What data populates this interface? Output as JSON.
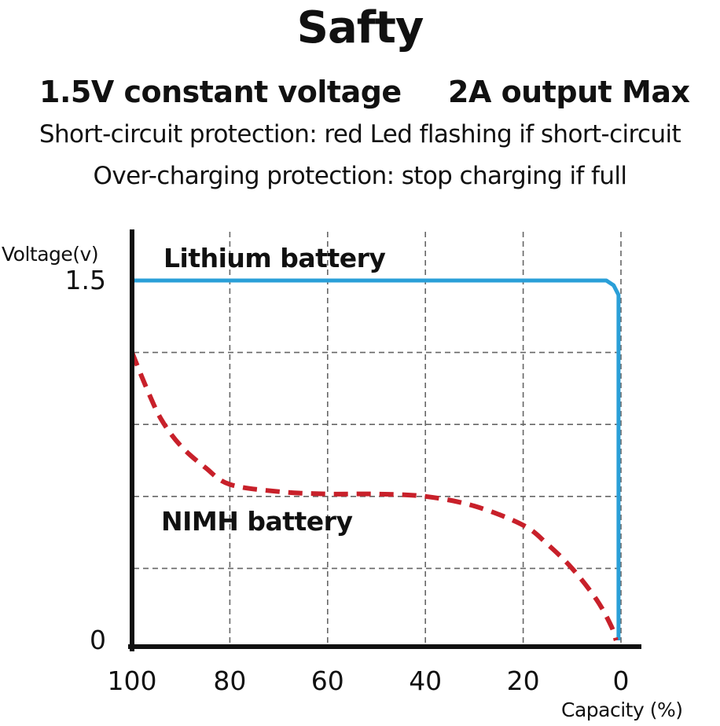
{
  "heading": {
    "title": "Safty",
    "spec_voltage": "1.5V constant voltage",
    "spec_output": "2A output Max",
    "short_circuit": "Short-circuit protection: red Led flashing if short-circuit",
    "over_charging": "Over-charging protection: stop charging if full"
  },
  "chart_data": {
    "type": "line",
    "title": "",
    "xlabel": "Capacity (%)",
    "ylabel": "Voltage(v)",
    "x_ticks": [
      "100",
      "80",
      "60",
      "40",
      "20",
      "0"
    ],
    "y_ticks": [
      "1.5",
      "0"
    ],
    "x_reversed": true,
    "xlim": [
      100,
      0
    ],
    "ylim": [
      0,
      1.5
    ],
    "grid": true,
    "legend": "inline labels",
    "series": [
      {
        "name": "Lithium battery",
        "color": "#2a9fd8",
        "style": "solid",
        "x": [
          100,
          80,
          60,
          40,
          20,
          3,
          1.5,
          0.5,
          0.5
        ],
        "y": [
          1.5,
          1.5,
          1.5,
          1.5,
          1.5,
          1.5,
          1.48,
          1.44,
          0
        ]
      },
      {
        "name": "NIMH battery",
        "color": "#c8202a",
        "style": "dashed",
        "x": [
          100,
          97,
          94,
          90,
          85,
          80,
          70,
          60,
          50,
          40,
          30,
          20,
          15,
          10,
          5,
          2,
          1
        ],
        "y": [
          1.2,
          1.05,
          0.92,
          0.81,
          0.72,
          0.65,
          0.62,
          0.61,
          0.61,
          0.6,
          0.56,
          0.48,
          0.4,
          0.3,
          0.17,
          0.06,
          0
        ]
      }
    ]
  }
}
